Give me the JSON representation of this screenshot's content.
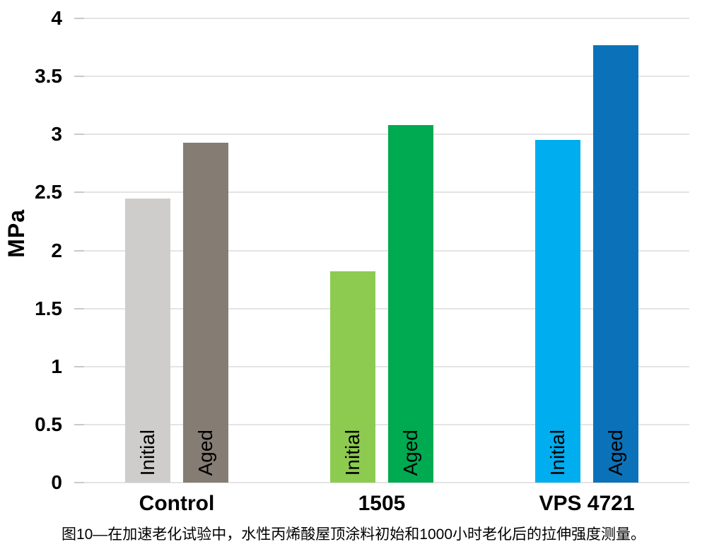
{
  "chart_data": {
    "type": "bar",
    "title": "",
    "xlabel": "",
    "ylabel": "MPa",
    "ylim": [
      0,
      4
    ],
    "ytick_step": 0.5,
    "yticks": [
      "0",
      "0.5",
      "1",
      "1.5",
      "2",
      "2.5",
      "3",
      "3.5",
      "4"
    ],
    "grid": true,
    "legend_position": "none",
    "categories": [
      "Control",
      "1505",
      "VPS 4721"
    ],
    "series": [
      {
        "name": "Initial",
        "values": [
          2.45,
          1.82,
          2.95
        ],
        "colors": [
          "#cecdcb",
          "#8dcb50",
          "#00aeef"
        ]
      },
      {
        "name": "Aged",
        "values": [
          2.93,
          3.08,
          3.77
        ],
        "colors": [
          "#857c74",
          "#00aa51",
          "#0b72b9"
        ]
      }
    ]
  },
  "caption": "图10—在加速老化试验中，水性丙烯酸屋顶涂料初始和1000小时老化后的拉伸强度测量。"
}
